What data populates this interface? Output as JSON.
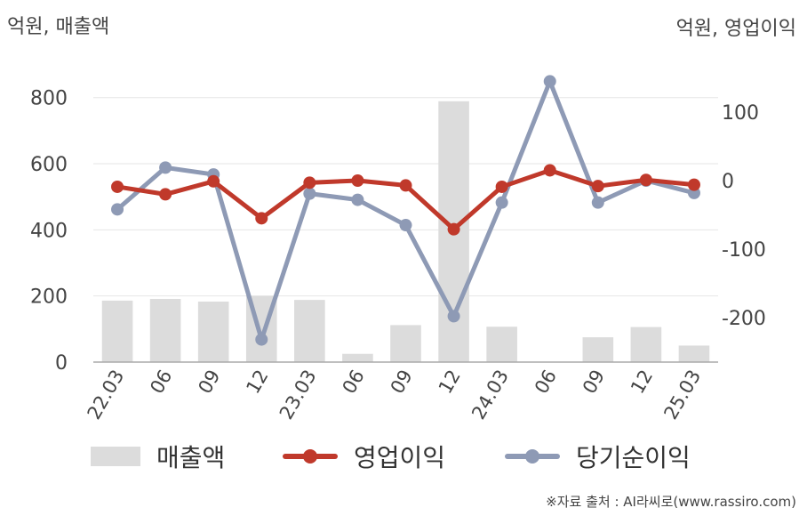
{
  "header": {
    "left_unit": "억원, 매출액",
    "right_unit": "억원, 영업이익"
  },
  "legend": {
    "bar_label": "매출액",
    "line1_label": "영업이익",
    "line2_label": "당기순이익"
  },
  "source": "※자료 출처 : AI라씨로(www.rassiro.com)",
  "colors": {
    "bar": "#dcdcdc",
    "op_income": "#c0392b",
    "net_income": "#8e9ab5",
    "grid": "#e6e6e6",
    "axis": "#aaaaaa"
  },
  "chart_data": {
    "type": "bar+line",
    "categories": [
      "22.03",
      "06",
      "09",
      "12",
      "23.03",
      "06",
      "09",
      "12",
      "24.03",
      "06",
      "09",
      "12",
      "25.03"
    ],
    "left_axis": {
      "ylim": [
        0,
        880
      ],
      "ticks": [
        0,
        200,
        400,
        600,
        800
      ]
    },
    "right_axis": {
      "ylim": [
        -265,
        165
      ],
      "ticks": [
        -200,
        -100,
        0,
        100
      ]
    },
    "series": [
      {
        "name": "매출액",
        "type": "bar",
        "axis": "left",
        "values": [
          186,
          191,
          183,
          200,
          188,
          25,
          112,
          789,
          107,
          0,
          75,
          106,
          50
        ]
      },
      {
        "name": "영업이익",
        "type": "line",
        "axis": "right",
        "values": [
          -9,
          -20,
          -1,
          -55,
          -3,
          0,
          -7,
          -71,
          -9,
          15,
          -8,
          1,
          -6
        ]
      },
      {
        "name": "당기순이익",
        "type": "line",
        "axis": "right",
        "values": [
          -42,
          19,
          9,
          -232,
          -19,
          -28,
          -65,
          -198,
          -32,
          145,
          -32,
          0,
          -18
        ]
      }
    ]
  }
}
